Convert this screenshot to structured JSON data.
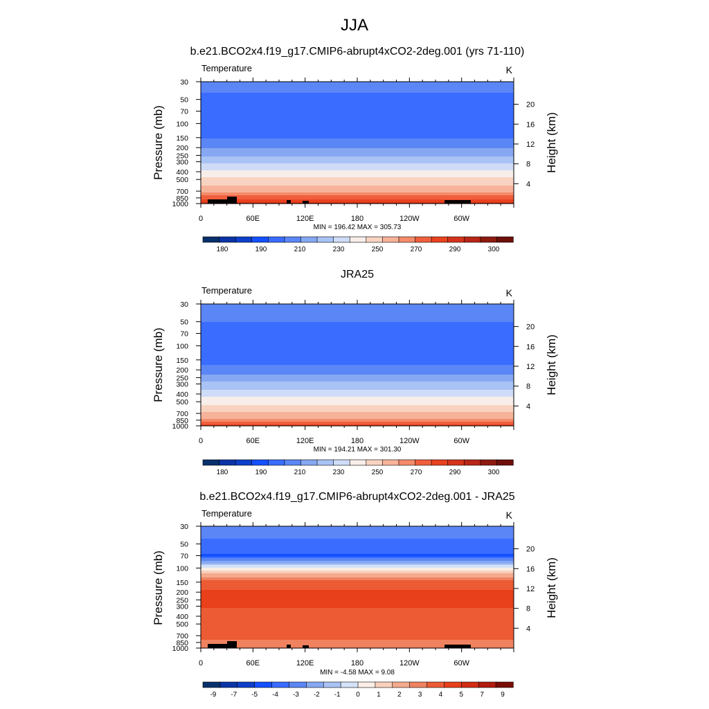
{
  "figure": {
    "title": "JJA"
  },
  "colors": {
    "temp_levels": [
      "#08306b",
      "#0a33a6",
      "#0d3fc9",
      "#1450ff",
      "#3a6cff",
      "#5b86f5",
      "#86a8f2",
      "#a9c3f5",
      "#cfdcf7",
      "#f7eeea",
      "#f9d3c1",
      "#f7b39a",
      "#f48b6a",
      "#f05f3d",
      "#e9421f",
      "#d6331b",
      "#b92517",
      "#8c1a10",
      "#6e0f0a"
    ],
    "diff_levels": [
      "#08306b",
      "#0a33a6",
      "#0d3fc9",
      "#1450ff",
      "#3a6cff",
      "#5b86f5",
      "#86a8f2",
      "#a9c3f5",
      "#d4e2f8",
      "#fbeee6",
      "#f9d0bc",
      "#f5aa8d",
      "#f0825f",
      "#ec5b34",
      "#e8401a",
      "#d22c12",
      "#b11c0d",
      "#7a0c06"
    ],
    "land_mask": "#000000"
  },
  "chart_data": [
    {
      "type": "heatmap",
      "title": "b.e21.BCO2x4.f19_g17.CMIP6-abrupt4xCO2-2deg.001 (yrs 71-110)",
      "left_label": "Temperature",
      "units_label": "K",
      "ylabel": "Pressure (mb)",
      "ylabel_right": "Height (km)",
      "xticks": [
        "0",
        "60E",
        "120E",
        "180",
        "120W",
        "60W"
      ],
      "yticks": [
        "30",
        "50",
        "70",
        "100",
        "150",
        "200",
        "250",
        "300",
        "400",
        "500",
        "700",
        "850",
        "1000"
      ],
      "yticks_right": [
        "20",
        "16",
        "12",
        "8",
        "4"
      ],
      "stats_text": "MIN = 196.42  MAX = 305.73",
      "colorbar_labels": [
        "180",
        "190",
        "210",
        "230",
        "250",
        "270",
        "290",
        "300"
      ],
      "colormap": "temp_levels",
      "min": 196.42,
      "max": 305.73,
      "profile_by_pressure": [
        {
          "p": 30,
          "v": 213
        },
        {
          "p": 50,
          "v": 208
        },
        {
          "p": 70,
          "v": 203
        },
        {
          "p": 100,
          "v": 201
        },
        {
          "p": 150,
          "v": 209
        },
        {
          "p": 200,
          "v": 219
        },
        {
          "p": 250,
          "v": 229
        },
        {
          "p": 300,
          "v": 238
        },
        {
          "p": 400,
          "v": 252
        },
        {
          "p": 500,
          "v": 262
        },
        {
          "p": 700,
          "v": 279
        },
        {
          "p": 850,
          "v": 288
        },
        {
          "p": 1000,
          "v": 298
        }
      ],
      "land_mask": true
    },
    {
      "type": "heatmap",
      "title": "JRA25",
      "left_label": "Temperature",
      "units_label": "K",
      "ylabel": "Pressure (mb)",
      "ylabel_right": "Height (km)",
      "xticks": [
        "0",
        "60E",
        "120E",
        "180",
        "120W",
        "60W"
      ],
      "yticks": [
        "30",
        "50",
        "70",
        "100",
        "150",
        "200",
        "250",
        "300",
        "400",
        "500",
        "700",
        "850",
        "1000"
      ],
      "yticks_right": [
        "20",
        "16",
        "12",
        "8",
        "4"
      ],
      "stats_text": "MIN = 194.21  MAX = 301.30",
      "colorbar_labels": [
        "180",
        "190",
        "210",
        "230",
        "250",
        "270",
        "290",
        "300"
      ],
      "colormap": "temp_levels",
      "min": 194.21,
      "max": 301.3,
      "profile_by_pressure": [
        {
          "p": 30,
          "v": 215
        },
        {
          "p": 50,
          "v": 210
        },
        {
          "p": 70,
          "v": 205
        },
        {
          "p": 100,
          "v": 200
        },
        {
          "p": 150,
          "v": 206
        },
        {
          "p": 200,
          "v": 214
        },
        {
          "p": 250,
          "v": 223
        },
        {
          "p": 300,
          "v": 233
        },
        {
          "p": 400,
          "v": 246
        },
        {
          "p": 500,
          "v": 256
        },
        {
          "p": 700,
          "v": 272
        },
        {
          "p": 850,
          "v": 282
        },
        {
          "p": 1000,
          "v": 292
        }
      ],
      "land_mask": false
    },
    {
      "type": "heatmap",
      "title": "b.e21.BCO2x4.f19_g17.CMIP6-abrupt4xCO2-2deg.001 - JRA25",
      "left_label": "Temperature",
      "units_label": "K",
      "ylabel": "Pressure (mb)",
      "ylabel_right": "Height (km)",
      "xticks": [
        "0",
        "60E",
        "120E",
        "180",
        "120W",
        "60W"
      ],
      "yticks": [
        "30",
        "50",
        "70",
        "100",
        "150",
        "200",
        "250",
        "300",
        "400",
        "500",
        "700",
        "850",
        "1000"
      ],
      "yticks_right": [
        "20",
        "16",
        "12",
        "8",
        "4"
      ],
      "stats_text": "MIN =  -4.58  MAX =   9.08",
      "colorbar_labels": [
        "-9",
        "-7",
        "-5",
        "-4",
        "-3",
        "-2",
        "-1",
        "0",
        "1",
        "2",
        "3",
        "4",
        "5",
        "7",
        "9"
      ],
      "colormap": "diff_levels",
      "min": -4.58,
      "max": 9.08,
      "profile_by_pressure": [
        {
          "p": 30,
          "v": -2.5
        },
        {
          "p": 50,
          "v": -3.2
        },
        {
          "p": 70,
          "v": -4.2
        },
        {
          "p": 100,
          "v": 1.2
        },
        {
          "p": 150,
          "v": 5.5
        },
        {
          "p": 200,
          "v": 7.3
        },
        {
          "p": 250,
          "v": 7.5
        },
        {
          "p": 300,
          "v": 7.2
        },
        {
          "p": 400,
          "v": 6.0
        },
        {
          "p": 500,
          "v": 6.0
        },
        {
          "p": 700,
          "v": 5.8
        },
        {
          "p": 850,
          "v": 4.5
        },
        {
          "p": 1000,
          "v": 4.6
        }
      ],
      "land_mask": true
    }
  ]
}
